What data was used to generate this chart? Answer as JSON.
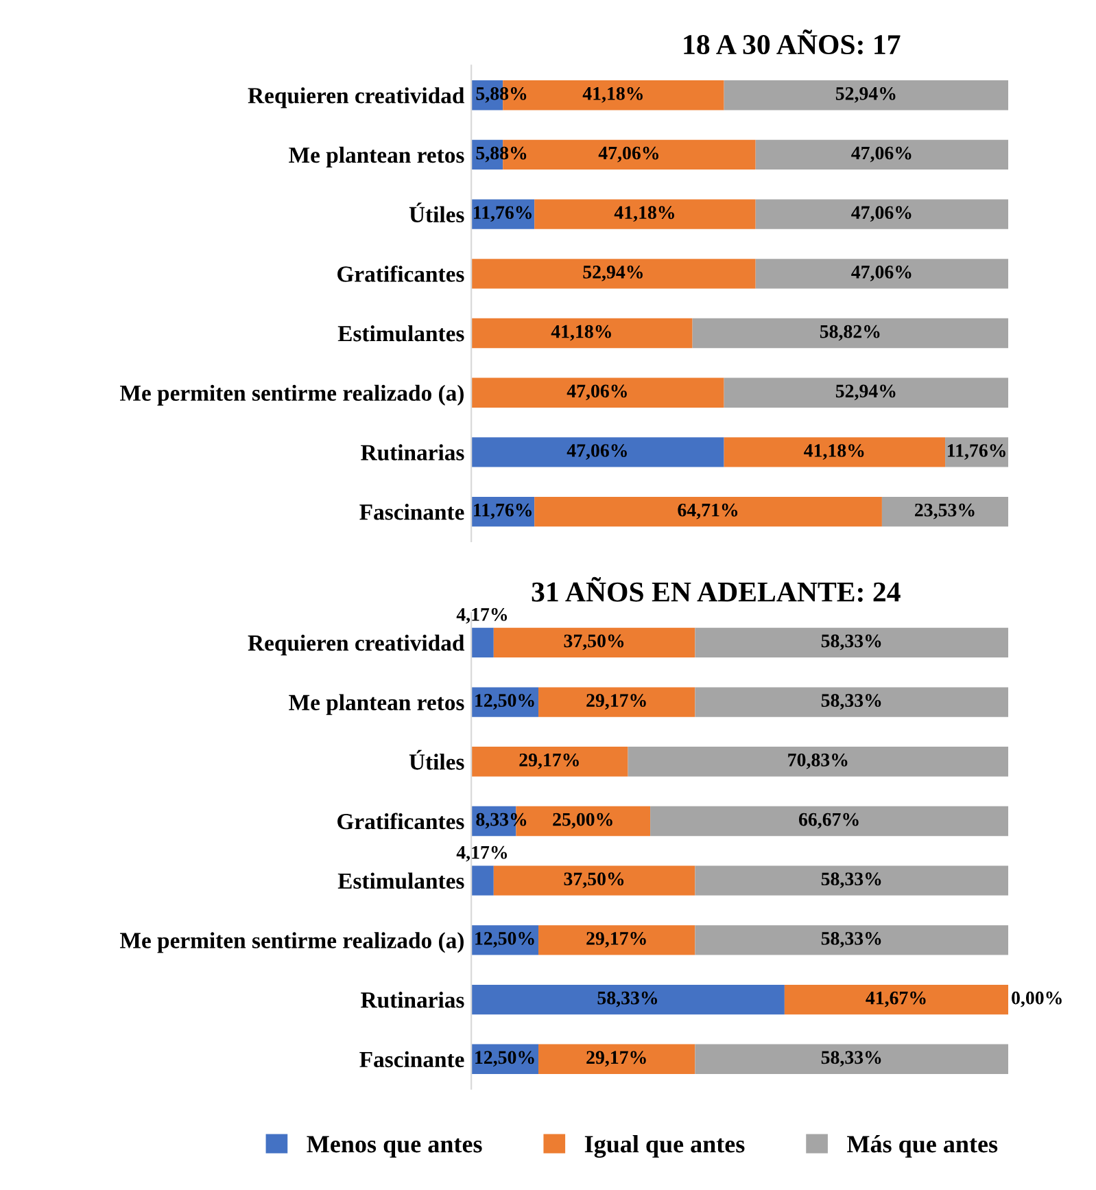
{
  "chart_data": [
    {
      "type": "bar",
      "orientation": "horizontal",
      "stacked": true,
      "title": "18 A 30 AÑOS: 17",
      "categories": [
        "Requieren creatividad",
        "Me plantean retos",
        "Útiles",
        "Gratificantes",
        "Estimulantes",
        "Me permiten sentirme realizado (a)",
        "Rutinarias",
        "Fascinante"
      ],
      "xlim": [
        0,
        100
      ],
      "tick_labels": "y",
      "legend": false,
      "series": [
        {
          "color": "#4472c4",
          "values": [
            5.88,
            5.88,
            11.76,
            0,
            0,
            0,
            47.06,
            11.76
          ],
          "value_labels": [
            "5,88%",
            "5,88%",
            "11,76%",
            null,
            null,
            null,
            "47,06%",
            "11,76%"
          ]
        },
        {
          "color": "#ed7d31",
          "values": [
            41.18,
            47.06,
            41.18,
            52.94,
            41.18,
            47.06,
            41.18,
            64.71
          ],
          "value_labels": [
            "41,18%",
            "47,06%",
            "41,18%",
            "52,94%",
            "41,18%",
            "47,06%",
            "41,18%",
            "64,71%"
          ]
        },
        {
          "color": "#a5a5a5",
          "values": [
            52.94,
            47.06,
            47.06,
            47.06,
            58.82,
            52.94,
            11.76,
            23.53
          ],
          "value_labels": [
            "52,94%",
            "47,06%",
            "47,06%",
            "47,06%",
            "58,82%",
            "52,94%",
            "11,76%",
            "23,53%"
          ]
        }
      ]
    },
    {
      "type": "bar",
      "orientation": "horizontal",
      "stacked": true,
      "title": "31 AÑOS EN ADELANTE: 24",
      "categories": [
        "Requieren creatividad",
        "Me plantean retos",
        "Útiles",
        "Gratificantes",
        "Estimulantes",
        "Me permiten sentirme realizado (a)",
        "Rutinarias",
        "Fascinante"
      ],
      "xlim": [
        0,
        100
      ],
      "tick_labels": "y",
      "legend": "bottom",
      "series": [
        {
          "name": "Menos que antes",
          "color": "#4472c4",
          "values": [
            4.17,
            12.5,
            0,
            8.33,
            4.17,
            12.5,
            58.33,
            12.5
          ],
          "value_labels": [
            "4,17%",
            "12,50%",
            null,
            "8,33%",
            "4,17%",
            "12,50%",
            "58,33%",
            "12,50%"
          ]
        },
        {
          "name": "Igual que antes",
          "color": "#ed7d31",
          "values": [
            37.5,
            29.17,
            29.17,
            25.0,
            37.5,
            29.17,
            41.67,
            29.17
          ],
          "value_labels": [
            "37,50%",
            "29,17%",
            "29,17%",
            "25,00%",
            "37,50%",
            "29,17%",
            "41,67%",
            "29,17%"
          ]
        },
        {
          "name": "Más que antes",
          "color": "#a5a5a5",
          "values": [
            58.33,
            58.33,
            70.83,
            66.67,
            58.33,
            58.33,
            0.0,
            58.33
          ],
          "value_labels": [
            "58,33%",
            "58,33%",
            "70,83%",
            "66,67%",
            "58,33%",
            "58,33%",
            "0,00%",
            "58,33%"
          ]
        }
      ]
    }
  ]
}
